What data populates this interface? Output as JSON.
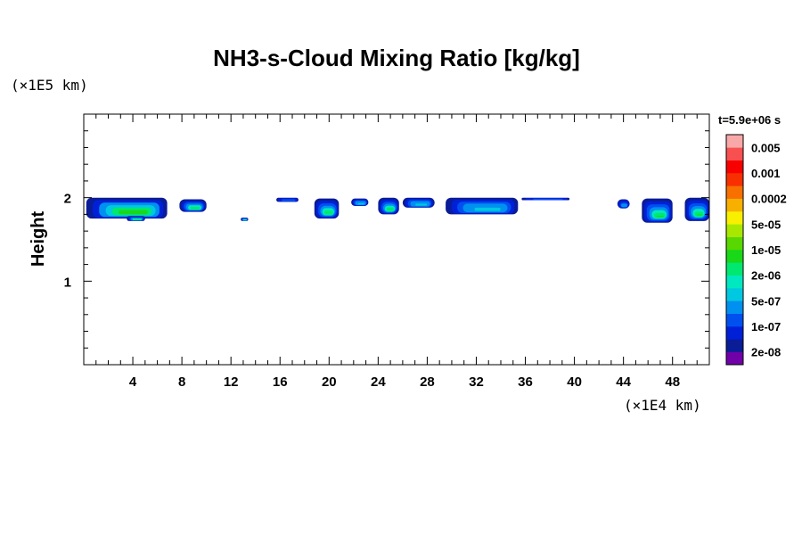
{
  "chart_data": {
    "type": "heatmap",
    "title": "NH3-s-Cloud Mixing Ratio [kg/kg]",
    "time_label": "t=5.9e+06 s",
    "xlabel": "",
    "ylabel": "Height",
    "x_unit": "(×1E4 km)",
    "y_unit": "(×1E5 km)",
    "xlim": [
      0,
      51
    ],
    "ylim": [
      0,
      3
    ],
    "x_ticks": [
      4,
      8,
      12,
      16,
      20,
      24,
      28,
      32,
      36,
      40,
      44,
      48
    ],
    "y_ticks": [
      1,
      2
    ],
    "x_tick_labels": [
      "4",
      "8",
      "12",
      "16",
      "20",
      "24",
      "28",
      "32",
      "36",
      "40",
      "44",
      "48"
    ],
    "y_tick_labels": [
      "1",
      "2"
    ],
    "x_minor_step": 1,
    "y_minor_step": 0.2,
    "colorbar": {
      "levels": [
        "2e-08",
        "1e-07",
        "5e-07",
        "2e-06",
        "1e-05",
        "5e-05",
        "0.0002",
        "0.001",
        "0.005"
      ],
      "colors": [
        "#7000a8",
        "#0a1c96",
        "#0020d8",
        "#0050f0",
        "#0090f0",
        "#00c8e0",
        "#00e8c0",
        "#00e870",
        "#18d818",
        "#58d800",
        "#a8e800",
        "#f8f000",
        "#f8b000",
        "#f87000",
        "#f83000",
        "#f80000",
        "#f85050",
        "#f8a8a8"
      ]
    },
    "cloud_patches": [
      {
        "x": [
          0.2,
          6.8
        ],
        "y_top": 2.0,
        "y_bottom": 1.75,
        "max_level": "5e-05"
      },
      {
        "x": [
          7.8,
          10.0
        ],
        "y_top": 1.98,
        "y_bottom": 1.83,
        "max_level": "1e-05"
      },
      {
        "x": [
          3.5,
          5.0
        ],
        "y_top": 1.78,
        "y_bottom": 1.72,
        "max_level": "1e-05"
      },
      {
        "x": [
          12.8,
          13.4
        ],
        "y_top": 1.76,
        "y_bottom": 1.72,
        "max_level": "1e-05"
      },
      {
        "x": [
          15.7,
          17.5
        ],
        "y_top": 2.0,
        "y_bottom": 1.95,
        "max_level": "1e-07"
      },
      {
        "x": [
          18.8,
          20.8
        ],
        "y_top": 1.99,
        "y_bottom": 1.75,
        "max_level": "1e-05"
      },
      {
        "x": [
          21.8,
          23.2
        ],
        "y_top": 1.99,
        "y_bottom": 1.9,
        "max_level": "2e-06"
      },
      {
        "x": [
          24.0,
          25.7
        ],
        "y_top": 2.0,
        "y_bottom": 1.8,
        "max_level": "1e-05"
      },
      {
        "x": [
          26.0,
          28.6
        ],
        "y_top": 2.0,
        "y_bottom": 1.88,
        "max_level": "2e-06"
      },
      {
        "x": [
          29.5,
          35.4
        ],
        "y_top": 2.0,
        "y_bottom": 1.8,
        "max_level": "2e-06"
      },
      {
        "x": [
          35.7,
          39.6
        ],
        "y_top": 2.0,
        "y_bottom": 1.97,
        "max_level": "1e-07"
      },
      {
        "x": [
          43.5,
          44.5
        ],
        "y_top": 1.98,
        "y_bottom": 1.87,
        "max_level": "5e-07"
      },
      {
        "x": [
          45.5,
          48.0
        ],
        "y_top": 1.99,
        "y_bottom": 1.7,
        "max_level": "1e-05"
      },
      {
        "x": [
          49.0,
          51.0
        ],
        "y_top": 2.0,
        "y_bottom": 1.72,
        "max_level": "1e-05"
      }
    ]
  }
}
